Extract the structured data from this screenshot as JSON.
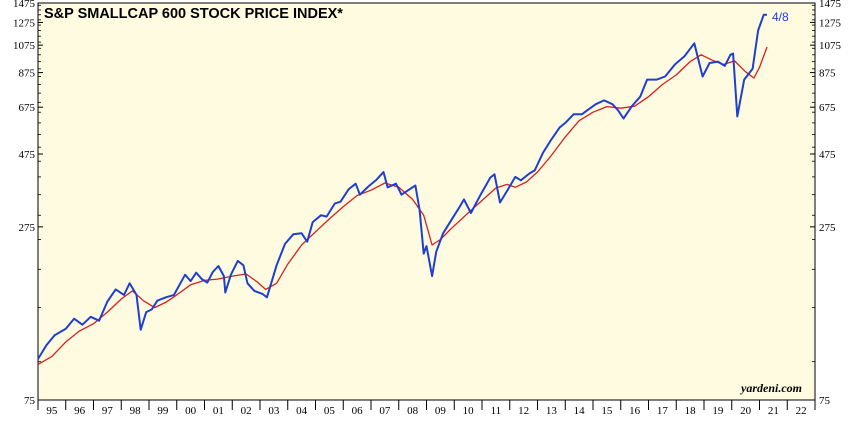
{
  "chart_data": {
    "type": "line",
    "title": "S&P SMALLCAP 600 STOCK PRICE INDEX*",
    "y_scale": "log",
    "ylim": [
      75,
      1475
    ],
    "y_ticks": [
      "75",
      "275",
      "475",
      "675",
      "875",
      "1075",
      "1275",
      "1475"
    ],
    "y_tick_values": [
      75,
      275,
      475,
      675,
      875,
      1075,
      1275,
      1475
    ],
    "x_tick_labels": [
      "95",
      "96",
      "97",
      "98",
      "99",
      "00",
      "01",
      "02",
      "03",
      "04",
      "05",
      "06",
      "07",
      "08",
      "09",
      "10",
      "11",
      "12",
      "13",
      "14",
      "15",
      "16",
      "17",
      "18",
      "19",
      "20",
      "21",
      "22"
    ],
    "xlim": [
      "1995-01",
      "2022-12"
    ],
    "annotation": "4/8",
    "credit": "yardeni.com",
    "plot_background": "#fefbe0",
    "series": [
      {
        "color": "#1f3fd1",
        "points": [
          [
            1995.0,
            102
          ],
          [
            1995.3,
            113
          ],
          [
            1995.6,
            122
          ],
          [
            1996.0,
            128
          ],
          [
            1996.3,
            138
          ],
          [
            1996.6,
            132
          ],
          [
            1996.9,
            140
          ],
          [
            1997.2,
            136
          ],
          [
            1997.5,
            157
          ],
          [
            1997.8,
            172
          ],
          [
            1998.1,
            165
          ],
          [
            1998.3,
            180
          ],
          [
            1998.55,
            165
          ],
          [
            1998.7,
            127
          ],
          [
            1998.9,
            145
          ],
          [
            1999.1,
            148
          ],
          [
            1999.3,
            158
          ],
          [
            1999.6,
            162
          ],
          [
            1999.9,
            165
          ],
          [
            2000.1,
            178
          ],
          [
            2000.3,
            192
          ],
          [
            2000.5,
            183
          ],
          [
            2000.7,
            195
          ],
          [
            2000.9,
            186
          ],
          [
            2001.1,
            181
          ],
          [
            2001.3,
            196
          ],
          [
            2001.5,
            205
          ],
          [
            2001.7,
            190
          ],
          [
            2001.75,
            168
          ],
          [
            2001.95,
            192
          ],
          [
            2002.2,
            213
          ],
          [
            2002.4,
            206
          ],
          [
            2002.55,
            180
          ],
          [
            2002.8,
            170
          ],
          [
            2003.1,
            166
          ],
          [
            2003.25,
            162
          ],
          [
            2003.6,
            206
          ],
          [
            2003.9,
            242
          ],
          [
            2004.2,
            260
          ],
          [
            2004.5,
            262
          ],
          [
            2004.7,
            246
          ],
          [
            2004.9,
            285
          ],
          [
            2005.2,
            300
          ],
          [
            2005.4,
            297
          ],
          [
            2005.7,
            328
          ],
          [
            2005.9,
            332
          ],
          [
            2006.2,
            365
          ],
          [
            2006.45,
            380
          ],
          [
            2006.6,
            350
          ],
          [
            2006.9,
            372
          ],
          [
            2007.2,
            392
          ],
          [
            2007.45,
            415
          ],
          [
            2007.6,
            370
          ],
          [
            2007.9,
            380
          ],
          [
            2008.1,
            350
          ],
          [
            2008.4,
            365
          ],
          [
            2008.6,
            375
          ],
          [
            2008.75,
            312
          ],
          [
            2008.9,
            225
          ],
          [
            2009.0,
            238
          ],
          [
            2009.2,
            190
          ],
          [
            2009.35,
            228
          ],
          [
            2009.6,
            262
          ],
          [
            2009.9,
            290
          ],
          [
            2010.2,
            320
          ],
          [
            2010.35,
            338
          ],
          [
            2010.6,
            305
          ],
          [
            2010.95,
            350
          ],
          [
            2011.3,
            398
          ],
          [
            2011.45,
            408
          ],
          [
            2011.65,
            330
          ],
          [
            2011.9,
            360
          ],
          [
            2012.2,
            400
          ],
          [
            2012.4,
            390
          ],
          [
            2012.7,
            410
          ],
          [
            2012.9,
            420
          ],
          [
            2013.2,
            480
          ],
          [
            2013.5,
            530
          ],
          [
            2013.8,
            580
          ],
          [
            2014.0,
            600
          ],
          [
            2014.3,
            640
          ],
          [
            2014.6,
            640
          ],
          [
            2014.8,
            660
          ],
          [
            2015.1,
            690
          ],
          [
            2015.4,
            710
          ],
          [
            2015.7,
            690
          ],
          [
            2015.9,
            660
          ],
          [
            2016.1,
            620
          ],
          [
            2016.4,
            680
          ],
          [
            2016.7,
            730
          ],
          [
            2016.95,
            830
          ],
          [
            2017.3,
            830
          ],
          [
            2017.6,
            850
          ],
          [
            2017.95,
            930
          ],
          [
            2018.3,
            990
          ],
          [
            2018.65,
            1090
          ],
          [
            2018.95,
            850
          ],
          [
            2019.2,
            940
          ],
          [
            2019.5,
            950
          ],
          [
            2019.75,
            920
          ],
          [
            2019.95,
            1000
          ],
          [
            2020.05,
            1010
          ],
          [
            2020.2,
            630
          ],
          [
            2020.45,
            830
          ],
          [
            2020.75,
            900
          ],
          [
            2020.95,
            1200
          ],
          [
            2021.15,
            1350
          ],
          [
            2021.27,
            1350
          ]
        ]
      },
      {
        "color": "#d82020",
        "points": [
          [
            1995.0,
            98
          ],
          [
            1995.5,
            104
          ],
          [
            1996.0,
            116
          ],
          [
            1996.5,
            126
          ],
          [
            1997.0,
            133
          ],
          [
            1997.5,
            145
          ],
          [
            1998.0,
            160
          ],
          [
            1998.4,
            170
          ],
          [
            1998.8,
            158
          ],
          [
            1999.2,
            150
          ],
          [
            1999.6,
            156
          ],
          [
            2000.0,
            165
          ],
          [
            2000.5,
            178
          ],
          [
            2001.0,
            184
          ],
          [
            2001.5,
            186
          ],
          [
            2002.0,
            190
          ],
          [
            2002.5,
            193
          ],
          [
            2002.9,
            182
          ],
          [
            2003.2,
            172
          ],
          [
            2003.6,
            180
          ],
          [
            2004.0,
            208
          ],
          [
            2004.5,
            240
          ],
          [
            2005.0,
            265
          ],
          [
            2005.5,
            292
          ],
          [
            2006.0,
            320
          ],
          [
            2006.5,
            348
          ],
          [
            2007.0,
            362
          ],
          [
            2007.5,
            382
          ],
          [
            2008.0,
            370
          ],
          [
            2008.5,
            338
          ],
          [
            2008.9,
            300
          ],
          [
            2009.2,
            240
          ],
          [
            2009.5,
            250
          ],
          [
            2009.9,
            272
          ],
          [
            2010.5,
            305
          ],
          [
            2011.0,
            335
          ],
          [
            2011.5,
            368
          ],
          [
            2011.9,
            378
          ],
          [
            2012.2,
            370
          ],
          [
            2012.6,
            385
          ],
          [
            2013.0,
            415
          ],
          [
            2013.5,
            470
          ],
          [
            2014.0,
            540
          ],
          [
            2014.5,
            610
          ],
          [
            2015.0,
            650
          ],
          [
            2015.5,
            678
          ],
          [
            2016.0,
            670
          ],
          [
            2016.5,
            680
          ],
          [
            2017.0,
            730
          ],
          [
            2017.5,
            800
          ],
          [
            2018.0,
            860
          ],
          [
            2018.5,
            950
          ],
          [
            2018.9,
            1000
          ],
          [
            2019.3,
            960
          ],
          [
            2019.7,
            930
          ],
          [
            2020.1,
            955
          ],
          [
            2020.5,
            880
          ],
          [
            2020.8,
            840
          ],
          [
            2021.0,
            910
          ],
          [
            2021.27,
            1060
          ]
        ]
      }
    ]
  }
}
